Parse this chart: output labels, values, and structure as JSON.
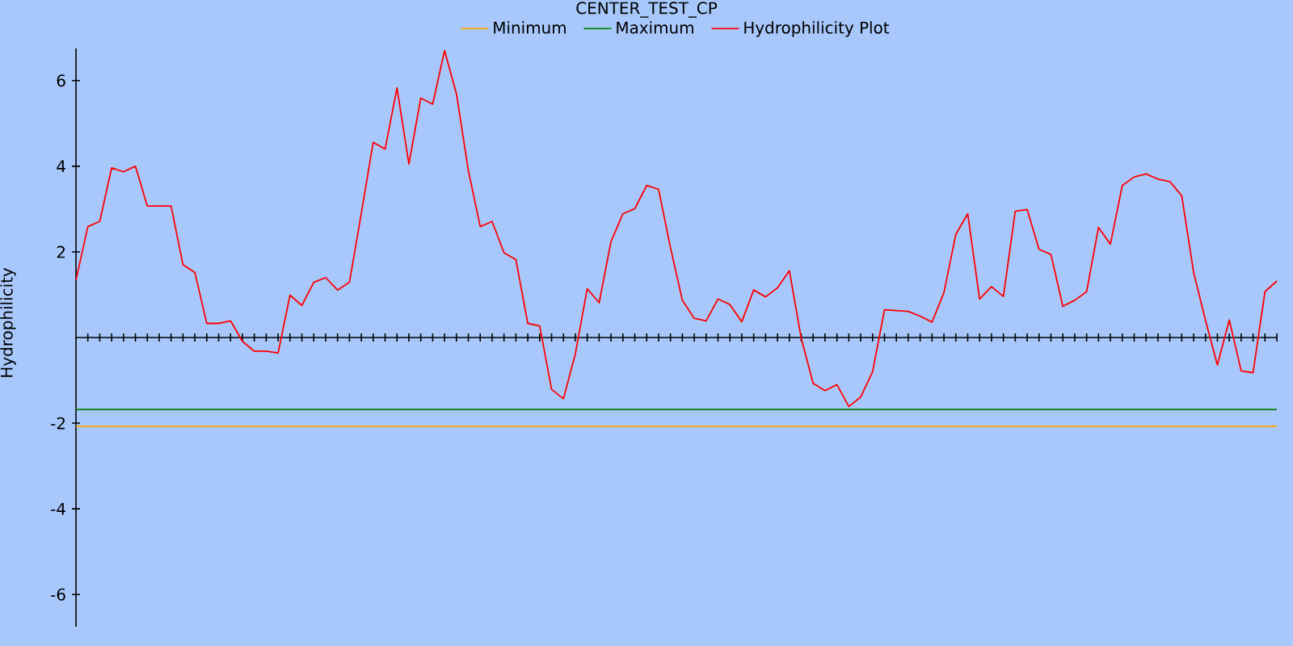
{
  "chart_data": {
    "type": "line",
    "title": "CENTER_TEST_CP",
    "ylabel": "Hydrophilicity",
    "categories": [
      null,
      null,
      null,
      null,
      null,
      null,
      null,
      null,
      null,
      null,
      null,
      null,
      null,
      null,
      null,
      null,
      null,
      null,
      null,
      null,
      null,
      null,
      null,
      null,
      null,
      null,
      null,
      null,
      null,
      null,
      null,
      null,
      null,
      null,
      null,
      null,
      null,
      null,
      null,
      null,
      null,
      null,
      null,
      null,
      null,
      null,
      null,
      null,
      null,
      null,
      null,
      null,
      null,
      null,
      null,
      null,
      null,
      null,
      null,
      null,
      null,
      null,
      null,
      null,
      null,
      null,
      null,
      null,
      null,
      null,
      null,
      null,
      null,
      null,
      null,
      null,
      null,
      null,
      null,
      null,
      null,
      null,
      null,
      null,
      null,
      null,
      null,
      null,
      null,
      null,
      null,
      null,
      null,
      null,
      null,
      null,
      null,
      null,
      null,
      null,
      null,
      null
    ],
    "series": [
      {
        "name": "Minimum",
        "color": "#ffa500",
        "values": [
          -2.07,
          -2.07,
          -2.07,
          -2.07,
          -2.07,
          -2.07,
          -2.07,
          -2.07,
          -2.07,
          -2.07,
          -2.07,
          -2.07,
          -2.07,
          -2.07,
          -2.07,
          -2.07,
          -2.07,
          -2.07,
          -2.07,
          -2.07,
          -2.07,
          -2.07,
          -2.07,
          -2.07,
          -2.07,
          -2.07,
          -2.07,
          -2.07,
          -2.07,
          -2.07,
          -2.07,
          -2.07,
          -2.07,
          -2.07,
          -2.07,
          -2.07,
          -2.07,
          -2.07,
          -2.07,
          -2.07,
          -2.07,
          -2.07,
          -2.07,
          -2.07,
          -2.07,
          -2.07,
          -2.07,
          -2.07,
          -2.07,
          -2.07,
          -2.07,
          -2.07,
          -2.07,
          -2.07,
          -2.07,
          -2.07,
          -2.07,
          -2.07,
          -2.07,
          -2.07,
          -2.07,
          -2.07,
          -2.07,
          -2.07,
          -2.07,
          -2.07,
          -2.07,
          -2.07,
          -2.07,
          -2.07,
          -2.07,
          -2.07,
          -2.07,
          -2.07,
          -2.07,
          -2.07,
          -2.07,
          -2.07,
          -2.07,
          -2.07,
          -2.07,
          -2.07,
          -2.07,
          -2.07,
          -2.07,
          -2.07,
          -2.07,
          -2.07,
          -2.07,
          -2.07,
          -2.07,
          -2.07,
          -2.07,
          -2.07,
          -2.07,
          -2.07,
          -2.07,
          -2.07,
          -2.07,
          -2.07,
          -2.07,
          -2.07
        ]
      },
      {
        "name": "Maximum",
        "color": "#008000",
        "values": [
          -1.68,
          -1.68,
          -1.68,
          -1.68,
          -1.68,
          -1.68,
          -1.68,
          -1.68,
          -1.68,
          -1.68,
          -1.68,
          -1.68,
          -1.68,
          -1.68,
          -1.68,
          -1.68,
          -1.68,
          -1.68,
          -1.68,
          -1.68,
          -1.68,
          -1.68,
          -1.68,
          -1.68,
          -1.68,
          -1.68,
          -1.68,
          -1.68,
          -1.68,
          -1.68,
          -1.68,
          -1.68,
          -1.68,
          -1.68,
          -1.68,
          -1.68,
          -1.68,
          -1.68,
          -1.68,
          -1.68,
          -1.68,
          -1.68,
          -1.68,
          -1.68,
          -1.68,
          -1.68,
          -1.68,
          -1.68,
          -1.68,
          -1.68,
          -1.68,
          -1.68,
          -1.68,
          -1.68,
          -1.68,
          -1.68,
          -1.68,
          -1.68,
          -1.68,
          -1.68,
          -1.68,
          -1.68,
          -1.68,
          -1.68,
          -1.68,
          -1.68,
          -1.68,
          -1.68,
          -1.68,
          -1.68,
          -1.68,
          -1.68,
          -1.68,
          -1.68,
          -1.68,
          -1.68,
          -1.68,
          -1.68,
          -1.68,
          -1.68,
          -1.68,
          -1.68,
          -1.68,
          -1.68,
          -1.68,
          -1.68,
          -1.68,
          -1.68,
          -1.68,
          -1.68,
          -1.68,
          -1.68,
          -1.68,
          -1.68,
          -1.68,
          -1.68,
          -1.68,
          -1.68,
          -1.68,
          -1.68,
          -1.68,
          -1.68
        ]
      },
      {
        "name": "Hydrophilicity Plot",
        "color": "#ff0000",
        "values": [
          1.34,
          2.59,
          2.71,
          3.96,
          3.87,
          4.0,
          3.07,
          3.07,
          3.07,
          1.7,
          1.52,
          0.33,
          0.33,
          0.39,
          -0.09,
          -0.32,
          -0.32,
          -0.36,
          0.99,
          0.75,
          1.29,
          1.4,
          1.11,
          1.29,
          2.9,
          4.56,
          4.4,
          5.83,
          4.05,
          5.59,
          5.45,
          6.7,
          5.69,
          3.9,
          2.59,
          2.71,
          1.98,
          1.82,
          0.33,
          0.27,
          -1.21,
          -1.43,
          -0.38,
          1.14,
          0.81,
          2.24,
          2.89,
          3.01,
          3.55,
          3.46,
          2.1,
          0.87,
          0.45,
          0.39,
          0.9,
          0.77,
          0.37,
          1.11,
          0.95,
          1.16,
          1.56,
          -0.02,
          -1.07,
          -1.24,
          -1.1,
          -1.61,
          -1.39,
          -0.8,
          0.65,
          0.63,
          0.61,
          0.5,
          0.36,
          1.05,
          2.41,
          2.89,
          0.9,
          1.19,
          0.96,
          2.95,
          2.99,
          2.06,
          1.94,
          0.73,
          0.87,
          1.07,
          2.57,
          2.18,
          3.55,
          3.75,
          3.82,
          3.7,
          3.64,
          3.31,
          1.52,
          0.4,
          -0.64,
          0.41,
          -0.78,
          -0.82,
          1.07,
          1.32
        ]
      }
    ],
    "ylim": [
      -6.75,
      6.75
    ],
    "yticks": [
      -6,
      -4,
      -2,
      2,
      4,
      6
    ],
    "tick_labels": "y",
    "legend": "top",
    "marker": "none",
    "line_style": "solid"
  }
}
